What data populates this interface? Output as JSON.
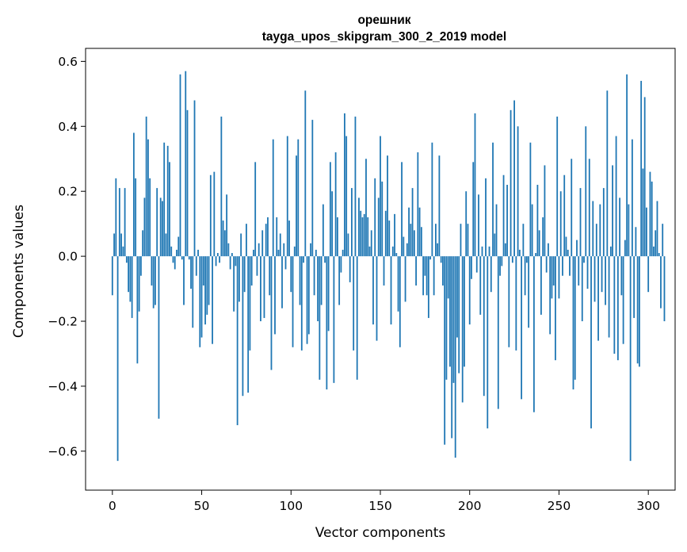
{
  "chart_data": {
    "type": "bar",
    "title": "орешник",
    "subtitle": "tayga_upos_skipgram_300_2_2019 model",
    "xlabel": "Vector components",
    "ylabel": "Components values",
    "xlim": [
      -15,
      315
    ],
    "ylim": [
      -0.72,
      0.64
    ],
    "xticks": [
      0,
      50,
      100,
      150,
      200,
      250,
      300
    ],
    "yticks": [
      -0.6,
      -0.4,
      -0.2,
      0.0,
      0.2,
      0.4,
      0.6
    ],
    "xtick_labels": [
      "0",
      "50",
      "100",
      "150",
      "200",
      "250",
      "300"
    ],
    "ytick_labels": [
      "−0.6",
      "−0.4",
      "−0.2",
      "0.0",
      "0.2",
      "0.4",
      "0.6"
    ],
    "bar_color": "#1f77b4",
    "grid": false,
    "values": [
      -0.12,
      0.07,
      0.24,
      -0.63,
      0.21,
      0.07,
      0.03,
      0.21,
      -0.02,
      -0.11,
      -0.14,
      -0.19,
      0.38,
      0.24,
      -0.33,
      -0.17,
      -0.06,
      0.08,
      0.18,
      0.43,
      0.36,
      0.24,
      -0.09,
      -0.16,
      -0.15,
      0.21,
      -0.5,
      0.18,
      0.17,
      0.35,
      0.07,
      0.34,
      0.29,
      0.03,
      -0.02,
      -0.04,
      0.02,
      0.06,
      0.56,
      -0.01,
      -0.15,
      0.57,
      0.45,
      -0.01,
      -0.1,
      -0.22,
      0.48,
      -0.06,
      0.02,
      -0.28,
      -0.25,
      -0.09,
      -0.21,
      -0.18,
      -0.15,
      0.25,
      -0.27,
      0.26,
      -0.03,
      0.01,
      -0.02,
      0.43,
      0.11,
      0.08,
      0.19,
      0.04,
      -0.04,
      0.01,
      -0.17,
      -0.03,
      -0.52,
      -0.14,
      0.07,
      -0.43,
      -0.11,
      0.1,
      -0.42,
      -0.29,
      -0.09,
      0.02,
      0.29,
      -0.06,
      0.04,
      -0.2,
      0.08,
      -0.19,
      0.1,
      0.12,
      -0.12,
      -0.35,
      0.36,
      -0.24,
      0.12,
      0.02,
      0.07,
      -0.16,
      0.04,
      -0.04,
      0.37,
      0.11,
      -0.11,
      -0.28,
      0.03,
      0.31,
      0.36,
      -0.15,
      -0.29,
      -0.02,
      0.51,
      -0.27,
      -0.24,
      0.04,
      0.42,
      -0.12,
      0.02,
      -0.2,
      -0.38,
      -0.15,
      0.16,
      -0.02,
      -0.41,
      -0.23,
      0.29,
      0.2,
      -0.39,
      0.32,
      0.12,
      -0.15,
      -0.05,
      0.02,
      0.44,
      0.37,
      0.07,
      -0.08,
      0.21,
      -0.29,
      0.43,
      -0.38,
      0.18,
      0.14,
      0.12,
      0.13,
      0.3,
      0.12,
      0.03,
      0.08,
      -0.21,
      0.24,
      -0.26,
      0.18,
      0.37,
      0.23,
      -0.09,
      0.14,
      0.31,
      0.11,
      -0.21,
      0.03,
      0.13,
      0.01,
      -0.17,
      -0.28,
      0.29,
      0.06,
      -0.14,
      0.04,
      0.15,
      0.1,
      0.21,
      0.08,
      -0.09,
      0.32,
      0.15,
      0.09,
      -0.12,
      -0.06,
      -0.12,
      -0.19,
      -0.01,
      0.35,
      -0.12,
      0.1,
      0.04,
      0.31,
      -0.02,
      -0.09,
      -0.58,
      -0.38,
      -0.13,
      -0.34,
      -0.56,
      -0.39,
      -0.62,
      -0.25,
      -0.36,
      0.1,
      -0.45,
      -0.34,
      0.2,
      0.1,
      -0.21,
      -0.07,
      0.29,
      0.44,
      -0.05,
      0.19,
      -0.18,
      0.03,
      -0.43,
      0.24,
      -0.53,
      0.03,
      -0.11,
      0.35,
      0.07,
      0.16,
      -0.47,
      -0.06,
      -0.03,
      0.25,
      0.04,
      0.22,
      -0.28,
      0.45,
      -0.02,
      0.48,
      -0.29,
      0.4,
      0.02,
      -0.44,
      0.1,
      -0.12,
      -0.02,
      -0.22,
      0.35,
      0.16,
      -0.48,
      0.01,
      0.22,
      0.08,
      -0.18,
      0.12,
      0.28,
      -0.05,
      0.04,
      -0.24,
      -0.13,
      -0.09,
      -0.32,
      0.43,
      -0.13,
      0.2,
      -0.06,
      0.25,
      0.06,
      0.02,
      -0.06,
      0.3,
      -0.41,
      -0.38,
      0.05,
      -0.09,
      0.21,
      -0.2,
      -0.02,
      0.4,
      -0.1,
      0.3,
      -0.53,
      0.17,
      -0.14,
      0.1,
      -0.26,
      0.16,
      -0.11,
      0.21,
      -0.15,
      0.51,
      -0.25,
      0.03,
      0.28,
      -0.3,
      0.37,
      -0.32,
      0.18,
      -0.12,
      -0.27,
      0.05,
      0.56,
      0.16,
      -0.63,
      0.36,
      -0.19,
      0.09,
      -0.33,
      -0.34,
      0.54,
      0.27,
      0.49,
      0.15,
      -0.11,
      0.26,
      0.23,
      0.03,
      0.08,
      0.17,
      0.01,
      -0.16,
      0.1,
      -0.2
    ]
  }
}
